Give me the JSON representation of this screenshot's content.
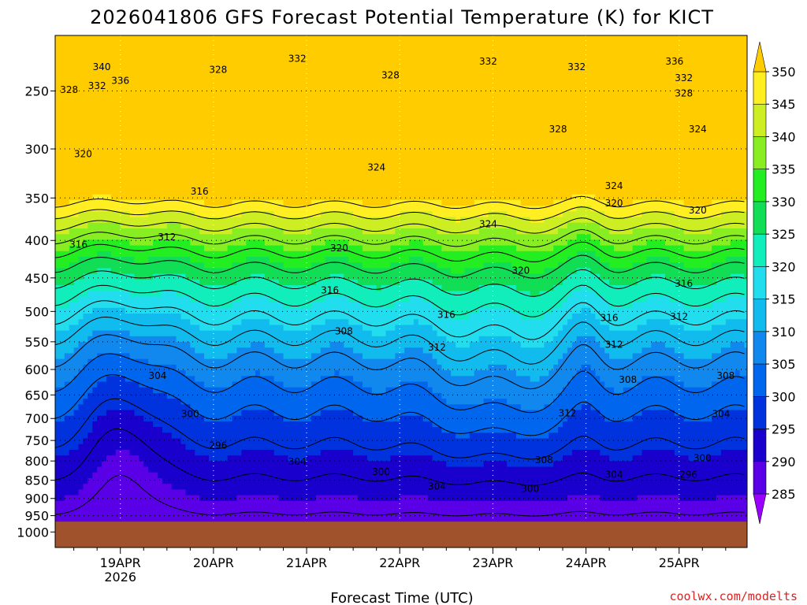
{
  "chart_data": {
    "type": "heatmap",
    "title": "2026041806 GFS Forecast Potential Temperature (K) for KICT",
    "xlabel": "Forecast Time (UTC)",
    "ylabel": "",
    "y_axis_ticks": [
      "250",
      "300",
      "350",
      "400",
      "450",
      "500",
      "550",
      "600",
      "650",
      "700",
      "750",
      "800",
      "850",
      "900",
      "950",
      "1000"
    ],
    "y_axis_values": [
      250,
      300,
      350,
      400,
      450,
      500,
      550,
      600,
      650,
      700,
      750,
      800,
      850,
      900,
      950,
      1000
    ],
    "ylim": [
      210,
      1050
    ],
    "y_scale": "log-pressure",
    "x_axis_ticks": [
      "19APR",
      "20APR",
      "21APR",
      "22APR",
      "23APR",
      "24APR",
      "25APR"
    ],
    "x_axis_year": "2026",
    "x_range_days": [
      18.3,
      25.73
    ],
    "colorbar": {
      "levels": [
        285,
        290,
        295,
        300,
        305,
        310,
        315,
        320,
        325,
        330,
        335,
        340,
        345,
        350
      ],
      "labels": [
        "350",
        "345",
        "340",
        "335",
        "330",
        "325",
        "320",
        "315",
        "310",
        "305",
        "300",
        "295",
        "290",
        "285"
      ],
      "colors": [
        "#9900ff",
        "#5a00e6",
        "#1a00cc",
        "#0033dd",
        "#0066ee",
        "#1188ee",
        "#11bbee",
        "#22ddee",
        "#11eebb",
        "#11dd55",
        "#22ee22",
        "#88ee22",
        "#ccee22",
        "#ffee22",
        "#ffcc00"
      ]
    },
    "contour_interval_K": 4,
    "contour_labels": [
      {
        "value": "340",
        "day": 18.8,
        "p": 232
      },
      {
        "value": "336",
        "day": 19.0,
        "p": 242
      },
      {
        "value": "332",
        "day": 18.75,
        "p": 246
      },
      {
        "value": "328",
        "day": 18.45,
        "p": 249
      },
      {
        "value": "328",
        "day": 20.05,
        "p": 234
      },
      {
        "value": "332",
        "day": 20.9,
        "p": 226
      },
      {
        "value": "328",
        "day": 21.9,
        "p": 238
      },
      {
        "value": "332",
        "day": 22.95,
        "p": 228
      },
      {
        "value": "332",
        "day": 23.9,
        "p": 232
      },
      {
        "value": "336",
        "day": 24.95,
        "p": 228
      },
      {
        "value": "332",
        "day": 25.05,
        "p": 240
      },
      {
        "value": "328",
        "day": 25.05,
        "p": 252
      },
      {
        "value": "328",
        "day": 23.7,
        "p": 282
      },
      {
        "value": "324",
        "day": 25.2,
        "p": 282
      },
      {
        "value": "320",
        "day": 18.6,
        "p": 305
      },
      {
        "value": "324",
        "day": 21.75,
        "p": 318
      },
      {
        "value": "324",
        "day": 24.3,
        "p": 337
      },
      {
        "value": "316",
        "day": 19.85,
        "p": 343
      },
      {
        "value": "320",
        "day": 24.3,
        "p": 356
      },
      {
        "value": "320",
        "day": 25.2,
        "p": 364
      },
      {
        "value": "324",
        "day": 22.95,
        "p": 380
      },
      {
        "value": "316",
        "day": 18.55,
        "p": 405
      },
      {
        "value": "312",
        "day": 19.5,
        "p": 396
      },
      {
        "value": "320",
        "day": 21.35,
        "p": 410
      },
      {
        "value": "320",
        "day": 23.3,
        "p": 440
      },
      {
        "value": "316",
        "day": 21.25,
        "p": 468
      },
      {
        "value": "316",
        "day": 25.05,
        "p": 458
      },
      {
        "value": "316",
        "day": 24.25,
        "p": 510
      },
      {
        "value": "312",
        "day": 25.0,
        "p": 508
      },
      {
        "value": "316",
        "day": 22.5,
        "p": 505
      },
      {
        "value": "308",
        "day": 21.4,
        "p": 532
      },
      {
        "value": "312",
        "day": 22.4,
        "p": 560
      },
      {
        "value": "312",
        "day": 24.3,
        "p": 555
      },
      {
        "value": "304",
        "day": 19.4,
        "p": 612
      },
      {
        "value": "308",
        "day": 24.45,
        "p": 620
      },
      {
        "value": "308",
        "day": 25.5,
        "p": 612
      },
      {
        "value": "312",
        "day": 23.8,
        "p": 688
      },
      {
        "value": "304",
        "day": 25.45,
        "p": 690
      },
      {
        "value": "300",
        "day": 19.75,
        "p": 690
      },
      {
        "value": "296",
        "day": 20.05,
        "p": 762
      },
      {
        "value": "304",
        "day": 20.9,
        "p": 802
      },
      {
        "value": "300",
        "day": 21.8,
        "p": 828
      },
      {
        "value": "308",
        "day": 23.55,
        "p": 798
      },
      {
        "value": "300",
        "day": 25.25,
        "p": 793
      },
      {
        "value": "304",
        "day": 22.4,
        "p": 867
      },
      {
        "value": "300",
        "day": 23.4,
        "p": 873
      },
      {
        "value": "304",
        "day": 24.3,
        "p": 835
      },
      {
        "value": "296",
        "day": 25.1,
        "p": 835
      }
    ],
    "legend": "right"
  },
  "credit": "coolwx.com/modelts",
  "colors": {
    "ground": "#a0522d",
    "credit": "#dd2222"
  }
}
